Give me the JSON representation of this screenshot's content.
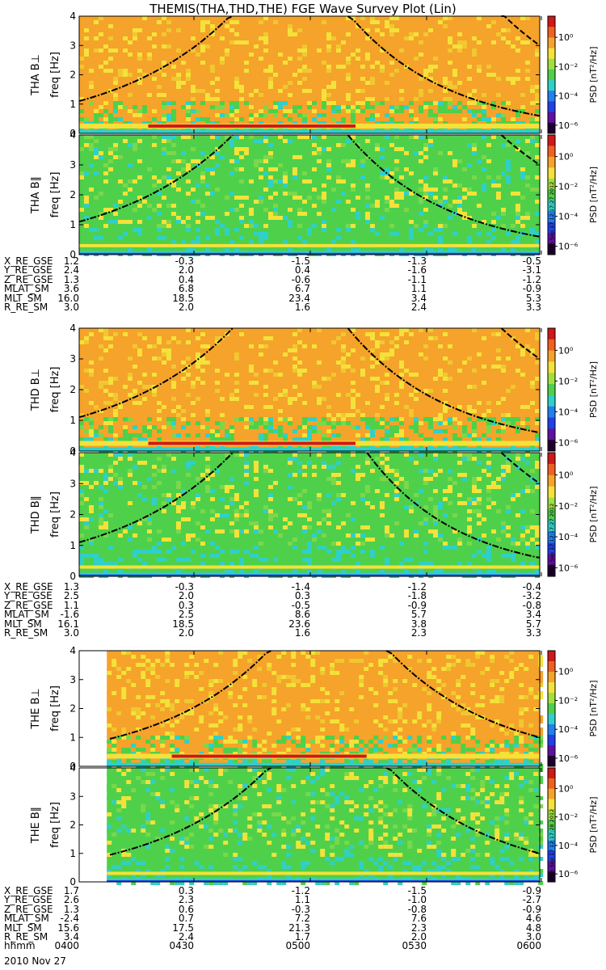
{
  "title": "THEMIS(THA,THD,THE) FGE Wave Survey Plot (Lin)",
  "colors": {
    "background": "#ffffff",
    "orange": "#f5a32a",
    "yellow": "#f4e23a",
    "green": "#4fd04a",
    "cyan": "#2fd0c8",
    "blue": "#2040e8",
    "dark": "#200030",
    "red": "#d01818"
  },
  "colorbar": {
    "label": "PSD [nT²/Hz]",
    "ticks": [
      "10⁰",
      "10⁻²",
      "10⁻⁴",
      "10⁻⁶"
    ]
  },
  "chart_data": [
    {
      "type": "heatmap",
      "panel": "THA B⊥",
      "ylabel_top": "THA B⊥",
      "ylabel": "freq [Hz]",
      "yticks": [
        "0",
        "1",
        "2",
        "3",
        "4"
      ],
      "ylim": [
        0,
        4
      ],
      "scale": "lin",
      "fill_fraction": 1.0,
      "level": "high",
      "band_hz": 0.25,
      "curves": [
        {
          "name": "",
          "style": "dashdot",
          "start": "0400",
          "end": "0440",
          "f_start": 1.1,
          "f_end": 4.1
        },
        {
          "name": "",
          "style": "dashdot",
          "start": "0510",
          "end": "0600",
          "f_start": 4.1,
          "f_end": 0.6
        },
        {
          "name": "",
          "style": "dashed",
          "start": "0550",
          "end": "0600",
          "f_start": 4.1,
          "f_end": 3.0
        }
      ]
    },
    {
      "type": "heatmap",
      "panel": "THA B∥",
      "ylabel_top": "THA B∥",
      "ylabel": "freq [Hz]",
      "yticks": [
        "0",
        "1",
        "2",
        "3",
        "4"
      ],
      "ylim": [
        0,
        4
      ],
      "scale": "lin",
      "fill_fraction": 1.0,
      "level": "low",
      "band_hz": 0.3,
      "stamp": "Mon Sep 17 12:17:27 2012",
      "curves": [
        {
          "name": "",
          "style": "dashdot",
          "start": "0400",
          "end": "0440",
          "f_start": 1.1,
          "f_end": 4.0
        },
        {
          "name": "",
          "style": "dashdot",
          "start": "0510",
          "end": "0600",
          "f_start": 4.0,
          "f_end": 0.6
        },
        {
          "name": "",
          "style": "dashed",
          "start": "0550",
          "end": "0600",
          "f_start": 4.0,
          "f_end": 3.0
        }
      ]
    },
    {
      "type": "heatmap",
      "panel": "THD B⊥",
      "ylabel_top": "THD B⊥",
      "ylabel": "freq [Hz]",
      "yticks": [
        "0",
        "1",
        "2",
        "3",
        "4"
      ],
      "ylim": [
        0,
        4
      ],
      "scale": "lin",
      "fill_fraction": 1.0,
      "level": "high",
      "band_hz": 0.25,
      "curves": [
        {
          "name": "",
          "style": "dashdot",
          "start": "0400",
          "end": "0440",
          "f_start": 1.1,
          "f_end": 4.0
        },
        {
          "name": "",
          "style": "dashdot",
          "start": "0510",
          "end": "0600",
          "f_start": 4.0,
          "f_end": 0.6
        },
        {
          "name": "",
          "style": "dashed",
          "start": "0550",
          "end": "0600",
          "f_start": 4.0,
          "f_end": 3.0
        }
      ]
    },
    {
      "type": "heatmap",
      "panel": "THD B∥",
      "ylabel_top": "THD B∥",
      "ylabel": "freq [Hz]",
      "yticks": [
        "0",
        "1",
        "2",
        "3",
        "4"
      ],
      "ylim": [
        0,
        4
      ],
      "scale": "lin",
      "fill_fraction": 1.0,
      "level": "low",
      "band_hz": 0.3,
      "stamp": "Mon Sep 17 12:17:27 2012",
      "curves": [
        {
          "name": "",
          "style": "dashdot",
          "start": "0400",
          "end": "0440",
          "f_start": 1.1,
          "f_end": 4.0
        },
        {
          "name": "",
          "style": "dashdot",
          "start": "0515",
          "end": "0600",
          "f_start": 4.0,
          "f_end": 0.6
        },
        {
          "name": "",
          "style": "dashed",
          "start": "0550",
          "end": "0600",
          "f_start": 4.0,
          "f_end": 3.0
        }
      ]
    },
    {
      "type": "heatmap",
      "panel": "THE B⊥",
      "ylabel_top": "THE B⊥",
      "ylabel": "freq [Hz]",
      "yticks": [
        "0",
        "1",
        "2",
        "3",
        "4"
      ],
      "ylim": [
        0,
        4
      ],
      "scale": "lin",
      "fill_fraction": 0.94,
      "level": "high",
      "band_hz": 0.35,
      "curves": [
        {
          "name": "",
          "style": "dashdot",
          "start": "0408",
          "end": "0450",
          "f_start": 0.95,
          "f_end": 4.1
        },
        {
          "name": "",
          "style": "dashdot",
          "start": "0520",
          "end": "0600",
          "f_start": 4.1,
          "f_end": 1.0
        }
      ]
    },
    {
      "type": "heatmap",
      "panel": "THE B∥",
      "ylabel_top": "THE B∥",
      "ylabel": "freq [Hz]",
      "yticks": [
        "0",
        "1",
        "2",
        "3",
        "4"
      ],
      "ylim": [
        0,
        4
      ],
      "scale": "lin",
      "fill_fraction": 0.94,
      "level": "low",
      "band_hz": 0.3,
      "stamp": "Mon Sep 17 12:17:28 2012",
      "curves": [
        {
          "name": "",
          "style": "dashdot",
          "start": "0408",
          "end": "0450",
          "f_start": 0.95,
          "f_end": 4.1
        },
        {
          "name": "",
          "style": "dashdot",
          "start": "0520",
          "end": "0600",
          "f_start": 4.1,
          "f_end": 1.0
        }
      ]
    }
  ],
  "ephemeris": [
    {
      "rows": [
        {
          "label": "X_RE_GSE",
          "values": [
            "1.2",
            "-0.3",
            "-1.5",
            "-1.3",
            "-0.5"
          ]
        },
        {
          "label": "Y_RE_GSE",
          "values": [
            "2.4",
            "2.0",
            "0.4",
            "-1.6",
            "-3.1"
          ]
        },
        {
          "label": "Z_RE_GSE",
          "values": [
            "1.3",
            "0.4",
            "-0.6",
            "-1.1",
            "-1.2"
          ]
        },
        {
          "label": "MLAT_SM",
          "values": [
            "3.6",
            "6.8",
            "6.7",
            "1.1",
            "-0.9"
          ]
        },
        {
          "label": "MLT_SM",
          "values": [
            "16.0",
            "18.5",
            "23.4",
            "3.4",
            "5.3"
          ]
        },
        {
          "label": "R_RE_SM",
          "values": [
            "3.0",
            "2.0",
            "1.6",
            "2.4",
            "3.3"
          ]
        }
      ]
    },
    {
      "rows": [
        {
          "label": "X_RE_GSE",
          "values": [
            "1.3",
            "-0.3",
            "-1.4",
            "-1.2",
            "-0.4"
          ]
        },
        {
          "label": "Y_RE_GSE",
          "values": [
            "2.5",
            "2.0",
            "0.3",
            "-1.8",
            "-3.2"
          ]
        },
        {
          "label": "Z_RE_GSE",
          "values": [
            "1.1",
            "0.3",
            "-0.5",
            "-0.9",
            "-0.8"
          ]
        },
        {
          "label": "MLAT_SM",
          "values": [
            "-1.6",
            "2.5",
            "8.6",
            "5.7",
            "3.4"
          ]
        },
        {
          "label": "MLT_SM",
          "values": [
            "16.1",
            "18.5",
            "23.6",
            "3.8",
            "5.7"
          ]
        },
        {
          "label": "R_RE_SM",
          "values": [
            "3.0",
            "2.0",
            "1.6",
            "2.3",
            "3.3"
          ]
        }
      ]
    },
    {
      "rows": [
        {
          "label": "X_RE_GSE",
          "values": [
            "1.7",
            "0.3",
            "-1.2",
            "-1.5",
            "-0.9"
          ]
        },
        {
          "label": "Y_RE_GSE",
          "values": [
            "2.6",
            "2.3",
            "1.1",
            "-1.0",
            "-2.7"
          ]
        },
        {
          "label": "Z_RE_GSE",
          "values": [
            "1.3",
            "0.6",
            "-0.3",
            "-0.8",
            "-0.9"
          ]
        },
        {
          "label": "MLAT_SM",
          "values": [
            "-2.4",
            "0.7",
            "7.2",
            "7.6",
            "4.6"
          ]
        },
        {
          "label": "MLT_SM",
          "values": [
            "15.6",
            "17.5",
            "21.3",
            "2.3",
            "4.8"
          ]
        },
        {
          "label": "R_RE_SM",
          "values": [
            "3.4",
            "2.4",
            "1.7",
            "2.0",
            "3.0"
          ]
        },
        {
          "label": "hhmm",
          "values": [
            "0400",
            "0430",
            "0500",
            "0530",
            "0600"
          ]
        }
      ]
    }
  ],
  "date": "2010 Nov 27"
}
